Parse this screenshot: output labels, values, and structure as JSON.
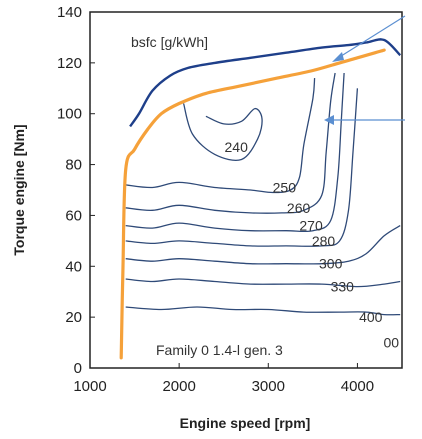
{
  "chart_data": {
    "type": "line",
    "title": "",
    "xlabel": "Engine speed [rpm]",
    "ylabel": "Torque engine [Nm]",
    "xlim": [
      1000,
      4500
    ],
    "ylim": [
      0,
      140
    ],
    "x_ticks": [
      1000,
      2000,
      3000,
      4000
    ],
    "x_tick_labels": [
      "1000",
      "2000",
      "3000",
      "4000"
    ],
    "y_ticks": [
      0,
      20,
      40,
      60,
      80,
      100,
      120,
      140
    ],
    "y_tick_labels": [
      "0",
      "20",
      "40",
      "60",
      "80",
      "100",
      "120",
      "140"
    ],
    "unit_label": "bsfc [g/kWh]",
    "annotation": "Family 0 1.4-l gen. 3",
    "grid": false,
    "colors": {
      "full_load": "#1e3f8a",
      "contour": "#2f4a78",
      "operating_line": "#f5a13a",
      "arrow": "#5b8fd1"
    },
    "full_load_curve": {
      "x": [
        1450,
        1550,
        1700,
        1900,
        2100,
        2400,
        2800,
        3200,
        3600,
        3900,
        4100,
        4300,
        4480
      ],
      "y": [
        95,
        100,
        109,
        115,
        118,
        120,
        122,
        124,
        126,
        127,
        128,
        129,
        123
      ]
    },
    "operating_line": {
      "x": [
        1350,
        1370,
        1400,
        1500,
        1650,
        1800,
        2000,
        2300,
        2700,
        3100,
        3500,
        3800,
        4000,
        4200,
        4300
      ],
      "y": [
        4,
        40,
        78,
        86,
        94,
        100,
        104,
        108,
        111,
        114,
        117,
        120,
        122,
        124,
        125
      ]
    },
    "contours": [
      {
        "label": "240",
        "x": [
          2050,
          2150,
          2400,
          2700,
          2880,
          2930,
          2850,
          2700,
          2500,
          2300
        ],
        "y": [
          104,
          92,
          84,
          82,
          90,
          98,
          102,
          97,
          96,
          99
        ]
      },
      {
        "label": "250",
        "x": [
          1400,
          1700,
          2000,
          2400,
          2800,
          3050,
          3250,
          3350,
          3400,
          3500,
          3520
        ],
        "y": [
          72,
          71,
          73,
          71,
          70,
          69,
          70,
          75,
          88,
          106,
          114
        ]
      },
      {
        "label": "260",
        "x": [
          1400,
          1700,
          2000,
          2400,
          2800,
          3150,
          3400,
          3600,
          3650,
          3700,
          3750
        ],
        "y": [
          63,
          62,
          64,
          62,
          61,
          61,
          62,
          68,
          85,
          105,
          116
        ]
      },
      {
        "label": "270",
        "x": [
          1400,
          1700,
          2000,
          2400,
          2800,
          3200,
          3500,
          3700,
          3780,
          3820,
          3850
        ],
        "y": [
          56,
          55,
          57,
          55,
          54,
          54,
          54,
          58,
          75,
          98,
          116
        ]
      },
      {
        "label": "280",
        "x": [
          1400,
          1700,
          2000,
          2400,
          2800,
          3200,
          3600,
          3800,
          3900,
          3950,
          4000
        ],
        "y": [
          50,
          49,
          50,
          49,
          48,
          48,
          48,
          50,
          62,
          85,
          110
        ]
      },
      {
        "label": "300",
        "x": [
          1400,
          1700,
          2000,
          2400,
          2800,
          3200,
          3600,
          3900,
          4100,
          4300,
          4480
        ],
        "y": [
          43,
          42,
          43,
          42,
          41,
          41,
          41,
          42,
          45,
          52,
          56
        ]
      },
      {
        "label": "330",
        "x": [
          1400,
          1700,
          2000,
          2400,
          2800,
          3200,
          3600,
          4000,
          4300,
          4480
        ],
        "y": [
          35,
          34,
          35,
          34,
          33,
          33,
          33,
          32,
          33,
          34
        ]
      },
      {
        "label": "400",
        "x": [
          1400,
          1800,
          2200,
          2600,
          3000,
          3400,
          3800,
          4100,
          4300,
          4480
        ],
        "y": [
          24,
          23,
          24,
          23,
          23,
          22,
          22,
          22,
          21,
          21
        ]
      }
    ],
    "contour_labels": [
      {
        "text": "240",
        "x": 2640,
        "y": 87
      },
      {
        "text": "250",
        "x": 3180,
        "y": 71
      },
      {
        "text": "260",
        "x": 3340,
        "y": 63
      },
      {
        "text": "270",
        "x": 3480,
        "y": 56
      },
      {
        "text": "280",
        "x": 3620,
        "y": 50
      },
      {
        "text": "300",
        "x": 3700,
        "y": 41
      },
      {
        "text": "330",
        "x": 3830,
        "y": 32
      },
      {
        "text": "400",
        "x": 4150,
        "y": 20
      },
      {
        "text": "00",
        "x": 4380,
        "y": 10
      }
    ]
  }
}
